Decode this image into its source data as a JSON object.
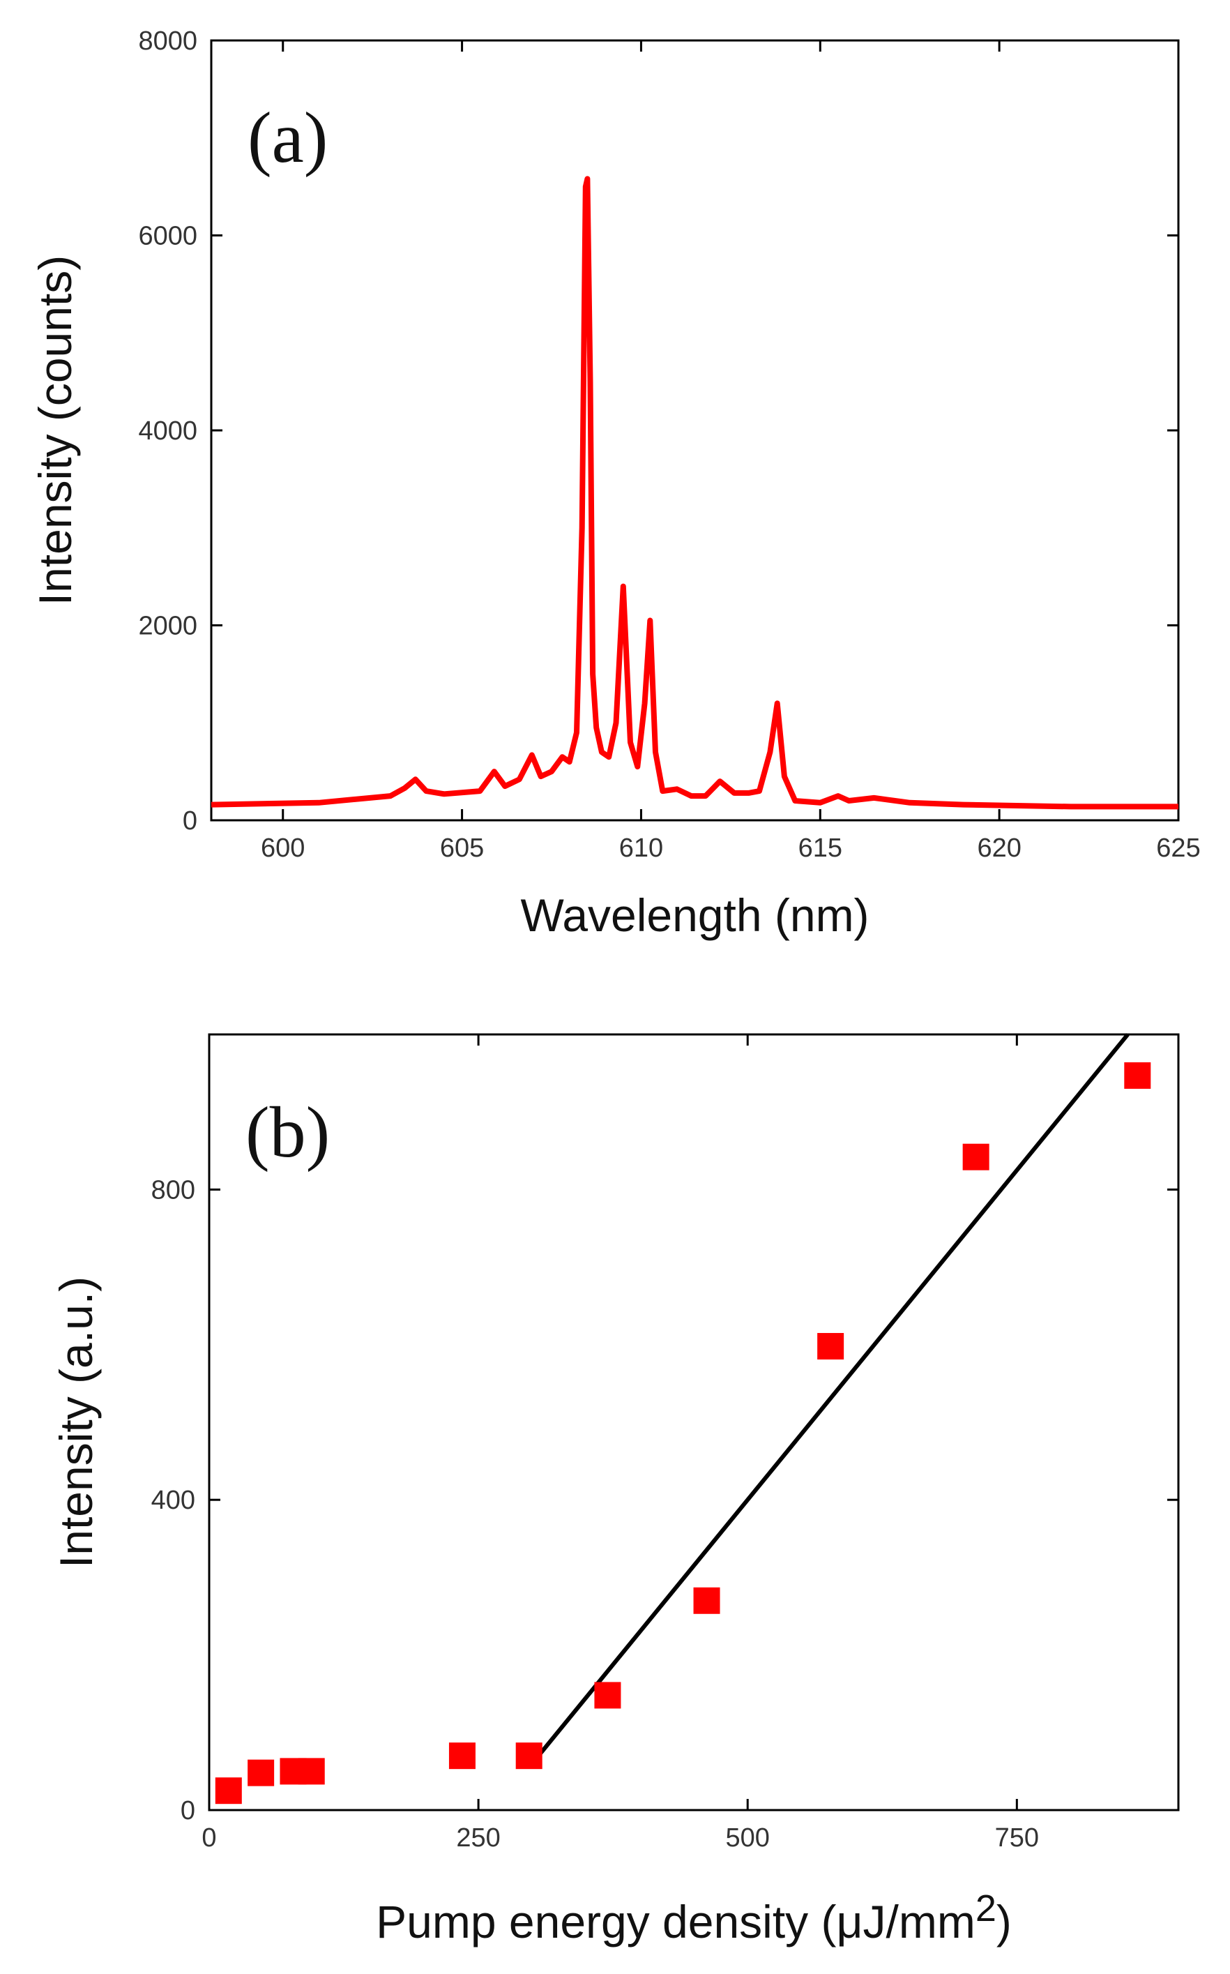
{
  "chart_data": [
    {
      "type": "line",
      "panel_label": "(a)",
      "xlabel": "Wavelength (nm)",
      "ylabel": "Intensity (counts)",
      "xlim": [
        598,
        625
      ],
      "ylim": [
        0,
        8000
      ],
      "xticks": [
        600,
        605,
        610,
        615,
        620,
        625
      ],
      "yticks": [
        0,
        2000,
        4000,
        6000,
        8000
      ],
      "color": "#ff0000",
      "x": [
        598,
        601,
        603,
        603.4,
        603.7,
        604.0,
        604.5,
        605.5,
        605.9,
        606.2,
        606.6,
        606.95,
        607.2,
        607.5,
        607.8,
        608.0,
        608.2,
        608.35,
        608.45,
        608.5,
        608.58,
        608.65,
        608.75,
        608.9,
        609.1,
        609.3,
        609.5,
        609.7,
        609.9,
        610.1,
        610.25,
        610.4,
        610.6,
        611.0,
        611.4,
        611.8,
        612.2,
        612.6,
        613.0,
        613.3,
        613.6,
        613.8,
        614.0,
        614.3,
        615.0,
        615.5,
        615.8,
        616.5,
        617.5,
        619,
        622,
        625
      ],
      "y": [
        160,
        180,
        250,
        330,
        420,
        300,
        270,
        300,
        500,
        350,
        420,
        670,
        450,
        500,
        650,
        600,
        900,
        3000,
        6500,
        6580,
        4500,
        1500,
        950,
        700,
        650,
        1000,
        2400,
        800,
        550,
        1200,
        2050,
        700,
        300,
        320,
        250,
        250,
        400,
        280,
        280,
        300,
        700,
        1200,
        450,
        200,
        180,
        250,
        200,
        230,
        180,
        160,
        140,
        140
      ]
    },
    {
      "type": "scatter",
      "panel_label": "(b)",
      "xlabel": "Pump energy density (μJ/mm",
      "xlabel_superscript": "2",
      "xlabel_close": ")",
      "ylabel": "Intensity (a.u.)",
      "xlim": [
        0,
        900
      ],
      "ylim": [
        0,
        1000
      ],
      "xticks": [
        0,
        250,
        500,
        750
      ],
      "yticks": [
        0,
        400,
        800
      ],
      "marker_color": "#ff0000",
      "points": [
        {
          "x": 18,
          "y": 25
        },
        {
          "x": 48,
          "y": 48
        },
        {
          "x": 78,
          "y": 50
        },
        {
          "x": 95,
          "y": 50
        },
        {
          "x": 235,
          "y": 70
        },
        {
          "x": 297,
          "y": 70
        },
        {
          "x": 370,
          "y": 148
        },
        {
          "x": 462,
          "y": 270
        },
        {
          "x": 577,
          "y": 598
        },
        {
          "x": 712,
          "y": 842
        },
        {
          "x": 862,
          "y": 947
        }
      ],
      "fit_line": {
        "color": "#000000",
        "x": [
          297,
          853
        ],
        "y": [
          55,
          1000
        ]
      }
    }
  ]
}
